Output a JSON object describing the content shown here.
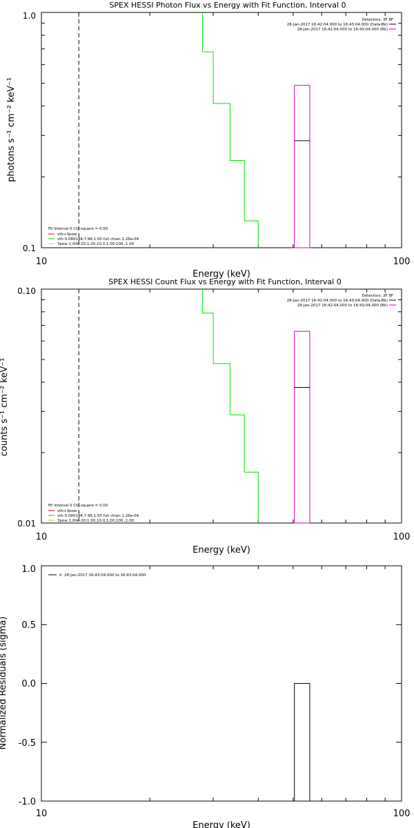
{
  "chart_data": [
    {
      "type": "line",
      "title": "SPEX HESSI Photon Flux vs Energy with Fit Function, Interval 0",
      "xlabel": "Energy (keV)",
      "ylabel": "photons s⁻¹ cm⁻² keV⁻¹",
      "xscale": "log",
      "yscale": "log",
      "xlim": [
        10,
        100
      ],
      "ylim": [
        0.1,
        1.0
      ],
      "xticks": [
        "10",
        "100"
      ],
      "yticks": [
        "0.1",
        "1.0"
      ],
      "vline_x": 12.7,
      "legend_tr": {
        "title": "Detectors: 3F 8F",
        "items": [
          {
            "text": "28-Jan-2017 16:42:04.000 to 16:43:04.000 (Data-Bk)",
            "color": "#000000"
          },
          {
            "text": "28-Jan-2017 16:42:04.000 to 16:43:04.000 (Bk)",
            "color": "#cc00cc"
          }
        ]
      },
      "legend_bl": {
        "header": "Fit Interval 0   Chi-square = 0.00",
        "items": [
          {
            "text": "vth+3pow",
            "color": "#cc0000"
          },
          {
            "text": "vth 0.080144,7.96,1.00  full chian 1.26e-04",
            "color": "#00cc00"
          },
          {
            "text": "3pow 1.00e-20,1.00,10.0,1.00,100.,1.00",
            "color": "#cccc00"
          }
        ]
      },
      "series": [
        {
          "color": "#00dd00",
          "x": [
            28.0,
            30.0,
            33.4,
            36.6,
            40.0
          ],
          "y": [
            1.0,
            0.68,
            0.41,
            0.235,
            0.13
          ]
        },
        {
          "color": "#cc00cc",
          "box": {
            "x0": 50.4,
            "x1": 55.6,
            "y0": 0.1,
            "y1": 0.49
          }
        },
        {
          "color": "#000000",
          "segment": {
            "x0": 50.4,
            "x1": 55.6,
            "y": 0.285
          }
        }
      ]
    },
    {
      "type": "line",
      "title": "SPEX HESSI Count Flux vs Energy with Fit Function, Interval 0",
      "xlabel": "Energy (keV)",
      "ylabel": "counts s⁻¹ cm⁻² keV⁻¹",
      "xscale": "log",
      "yscale": "log",
      "xlim": [
        10,
        100
      ],
      "ylim": [
        0.01,
        0.1
      ],
      "xticks": [
        "10",
        "100"
      ],
      "yticks": [
        "0.01",
        "0.10"
      ],
      "vline_x": 12.7,
      "legend_tr": {
        "title": "Detectors: 3F 8F",
        "items": [
          {
            "text": "28-Jan-2017 16:42:04.000 to 16:43:04.000 (Data-Bk)",
            "color": "#000000"
          },
          {
            "text": "28-Jan-2017 16:42:04.000 to 16:43:04.000 (Bk)",
            "color": "#cc00cc"
          }
        ]
      },
      "legend_bl": {
        "header": "Fit Interval 0   Chi-square = 0.00",
        "items": [
          {
            "text": "vth+3pow",
            "color": "#cc0000"
          },
          {
            "text": "vth 0.080144,7.96,1.00  full chian 1.26e-04",
            "color": "#00cc00"
          },
          {
            "text": "3pow 1.00e-20,1.00,10.0,1.00,100.,1.00",
            "color": "#cccc00"
          }
        ]
      },
      "series": [
        {
          "color": "#00dd00",
          "x": [
            28.0,
            30.0,
            33.4,
            36.6,
            40.0
          ],
          "y": [
            0.1,
            0.079,
            0.048,
            0.029,
            0.0165
          ]
        },
        {
          "color": "#cc00cc",
          "box": {
            "x0": 50.4,
            "x1": 55.6,
            "y0": 0.01,
            "y1": 0.066
          }
        },
        {
          "color": "#000000",
          "segment": {
            "x0": 50.4,
            "x1": 55.6,
            "y": 0.038
          }
        }
      ]
    },
    {
      "type": "bar",
      "xlabel": "Energy (keV)",
      "ylabel": "Normalized Residuals (sigma)",
      "xscale": "log",
      "xlim": [
        10,
        100
      ],
      "ylim": [
        -1.0,
        1.0
      ],
      "xticks": [
        "10",
        "100"
      ],
      "yticks": [
        "-1.0",
        "-0.5",
        "0.0",
        "0.5",
        "1.0"
      ],
      "legend": {
        "text": "0. 28-Jan-2017 16:43:04.000 to 16:43:04.000",
        "color": "#000000"
      },
      "series": [
        {
          "color": "#000000",
          "box": {
            "x0": 50.4,
            "x1": 55.6,
            "y0": -1.0,
            "y1": 0.0
          }
        }
      ]
    }
  ]
}
